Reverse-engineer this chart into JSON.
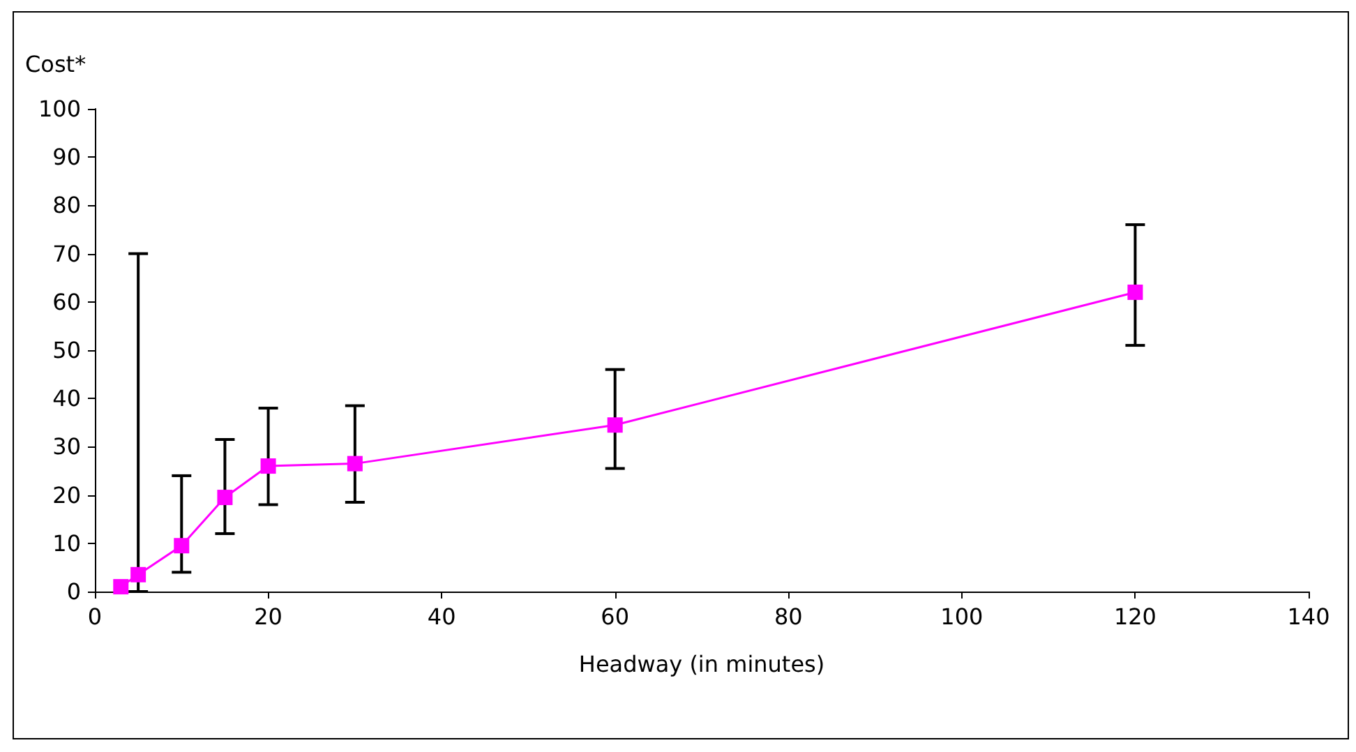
{
  "chart_data": {
    "type": "line",
    "xlabel": "Headway (in minutes)",
    "ylabel": "Cost*",
    "x": [
      3,
      5,
      10,
      15,
      20,
      30,
      60,
      120
    ],
    "series": [
      {
        "color": "#ff00ff",
        "values": [
          1,
          3.5,
          9.5,
          19.5,
          26,
          26.5,
          34.5,
          62
        ],
        "errors": [
          null,
          [
            0,
            70
          ],
          [
            4,
            24
          ],
          [
            12,
            31.5
          ],
          [
            18,
            38
          ],
          [
            18.5,
            38.5
          ],
          [
            25.5,
            46
          ],
          [
            51,
            76
          ]
        ]
      }
    ],
    "xlim": [
      0,
      140
    ],
    "xticks": [
      0,
      20,
      40,
      60,
      80,
      100,
      120,
      140
    ],
    "ylim": [
      0,
      100
    ],
    "yticks": [
      0,
      10,
      20,
      30,
      40,
      50,
      60,
      70,
      80,
      90,
      100
    ],
    "grid": false,
    "marker": "square",
    "line_style": "solid"
  }
}
